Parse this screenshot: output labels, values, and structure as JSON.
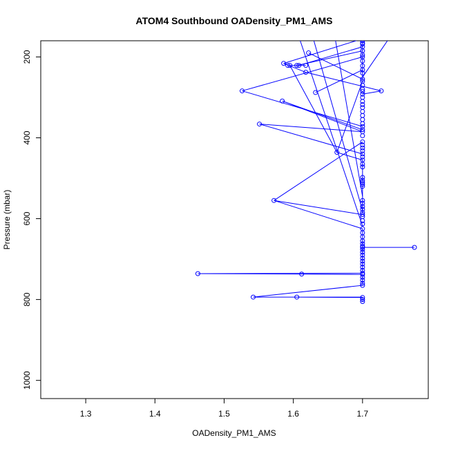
{
  "chart_data": {
    "type": "scatter",
    "title": "ATOM4 Southbound OADensity_PM1_AMS",
    "xlabel": "OADensity_PM1_AMS",
    "ylabel": "Pressure (mbar)",
    "xlim": [
      1.235,
      1.795
    ],
    "ylim": [
      1045,
      160
    ],
    "y_reversed": true,
    "x_ticks": [
      "1.3",
      "1.4",
      "1.5",
      "1.6",
      "1.7"
    ],
    "y_ticks": [
      "200",
      "400",
      "600",
      "800",
      "1000"
    ],
    "grid": false,
    "series_color": "#0000ff",
    "series": [
      {
        "points": [
          [
            1.7,
            805
          ],
          [
            1.7,
            800
          ],
          [
            1.7,
            795
          ],
          [
            1.605,
            794
          ],
          [
            1.542,
            794
          ],
          [
            1.7,
            765
          ],
          [
            1.7,
            760
          ],
          [
            1.7,
            752
          ],
          [
            1.7,
            745
          ],
          [
            1.7,
            738
          ],
          [
            1.612,
            737
          ],
          [
            1.462,
            736
          ],
          [
            1.7,
            735
          ],
          [
            1.7,
            728
          ],
          [
            1.7,
            720
          ],
          [
            1.7,
            712
          ],
          [
            1.7,
            705
          ],
          [
            1.7,
            698
          ],
          [
            1.7,
            690
          ],
          [
            1.7,
            683
          ],
          [
            1.7,
            676
          ],
          [
            1.775,
            671
          ],
          [
            1.7,
            671
          ],
          [
            1.7,
            668
          ],
          [
            1.7,
            662
          ],
          [
            1.7,
            655
          ],
          [
            1.7,
            645
          ],
          [
            1.7,
            635
          ],
          [
            1.7,
            625
          ],
          [
            1.7,
            613
          ],
          [
            1.7,
            605
          ],
          [
            1.7,
            595
          ],
          [
            1.7,
            590
          ],
          [
            1.572,
            555
          ],
          [
            1.7,
            585
          ],
          [
            1.7,
            577
          ],
          [
            1.7,
            570
          ],
          [
            1.7,
            562
          ],
          [
            1.7,
            555
          ],
          [
            1.7,
            520
          ],
          [
            1.7,
            515
          ],
          [
            1.7,
            510
          ],
          [
            1.7,
            505
          ],
          [
            1.7,
            498
          ],
          [
            1.7,
            472
          ],
          [
            1.7,
            465
          ],
          [
            1.7,
            455
          ],
          [
            1.7,
            447
          ],
          [
            1.663,
            436
          ],
          [
            1.7,
            440
          ],
          [
            1.7,
            432
          ],
          [
            1.7,
            425
          ],
          [
            1.7,
            418
          ],
          [
            1.7,
            410
          ],
          [
            1.7,
            395
          ],
          [
            1.7,
            385
          ],
          [
            1.551,
            366
          ],
          [
            1.7,
            380
          ],
          [
            1.7,
            372
          ],
          [
            1.7,
            365
          ],
          [
            1.7,
            355
          ],
          [
            1.7,
            345
          ],
          [
            1.7,
            335
          ],
          [
            1.7,
            325
          ],
          [
            1.584,
            309
          ],
          [
            1.7,
            318
          ],
          [
            1.7,
            310
          ],
          [
            1.7,
            300
          ],
          [
            1.7,
            292
          ],
          [
            1.7,
            285
          ],
          [
            1.526,
            284
          ],
          [
            1.727,
            284
          ],
          [
            1.7,
            280
          ],
          [
            1.632,
            288
          ],
          [
            1.7,
            270
          ],
          [
            1.7,
            260
          ],
          [
            1.7,
            255
          ],
          [
            1.7,
            240
          ],
          [
            1.7,
            232
          ],
          [
            1.7,
            222
          ],
          [
            1.618,
            238
          ],
          [
            1.7,
            210
          ],
          [
            1.7,
            200
          ],
          [
            1.7,
            195
          ],
          [
            1.7,
            185
          ],
          [
            1.7,
            175
          ],
          [
            1.7,
            168
          ],
          [
            1.586,
            216
          ],
          [
            1.618,
            221
          ],
          [
            1.592,
            221
          ],
          [
            1.595,
            221
          ],
          [
            1.605,
            221
          ],
          [
            1.608,
            221
          ],
          [
            1.622,
            190
          ],
          [
            1.7,
            165
          ],
          [
            1.7,
            160
          ]
        ],
        "path_order": [
          [
            1.7,
            805
          ],
          [
            1.7,
            795
          ],
          [
            1.605,
            794
          ],
          [
            1.7,
            794
          ],
          [
            1.542,
            794
          ],
          [
            1.7,
            765
          ],
          [
            1.7,
            738
          ],
          [
            1.612,
            737
          ],
          [
            1.462,
            736
          ],
          [
            1.7,
            735
          ],
          [
            1.7,
            676
          ],
          [
            1.7,
            671
          ],
          [
            1.775,
            671
          ],
          [
            1.7,
            671
          ],
          [
            1.7,
            625
          ],
          [
            1.572,
            555
          ],
          [
            1.7,
            590
          ],
          [
            1.7,
            520
          ],
          [
            1.7,
            498
          ],
          [
            1.7,
            455
          ],
          [
            1.663,
            436
          ],
          [
            1.7,
            260
          ],
          [
            1.7,
            200
          ],
          [
            1.7,
            160
          ]
        ],
        "extra_segments": [
          [
            [
              1.7,
              440
            ],
            [
              1.551,
              366
            ]
          ],
          [
            [
              1.551,
              366
            ],
            [
              1.7,
              385
            ]
          ],
          [
            [
              1.7,
              385
            ],
            [
              1.584,
              309
            ]
          ],
          [
            [
              1.584,
              309
            ],
            [
              1.7,
              380
            ]
          ],
          [
            [
              1.7,
              372
            ],
            [
              1.526,
              284
            ]
          ],
          [
            [
              1.526,
              284
            ],
            [
              1.7,
              200
            ]
          ],
          [
            [
              1.7,
              292
            ],
            [
              1.727,
              284
            ]
          ],
          [
            [
              1.727,
              284
            ],
            [
              1.618,
              238
            ]
          ],
          [
            [
              1.618,
              238
            ],
            [
              1.586,
              216
            ]
          ],
          [
            [
              1.586,
              216
            ],
            [
              1.7,
              155
            ]
          ],
          [
            [
              1.632,
              288
            ],
            [
              1.7,
              232
            ]
          ],
          [
            [
              1.622,
              190
            ],
            [
              1.7,
              255
            ]
          ],
          [
            [
              1.605,
              221
            ],
            [
              1.7,
              185
            ]
          ],
          [
            [
              1.608,
              221
            ],
            [
              1.7,
              175
            ]
          ],
          [
            [
              1.592,
              221
            ],
            [
              1.618,
              221
            ]
          ],
          [
            [
              1.663,
              436
            ],
            [
              1.595,
              221
            ]
          ],
          [
            [
              1.7,
              618
            ],
            [
              1.608,
              150
            ]
          ],
          [
            [
              1.7,
              250
            ],
            [
              1.74,
              150
            ]
          ],
          [
            [
              1.7,
              580
            ],
            [
              1.628,
              150
            ]
          ],
          [
            [
              1.7,
              545
            ],
            [
              1.66,
              150
            ]
          ],
          [
            [
              1.572,
              555
            ],
            [
              1.7,
              410
            ]
          ]
        ]
      }
    ]
  }
}
